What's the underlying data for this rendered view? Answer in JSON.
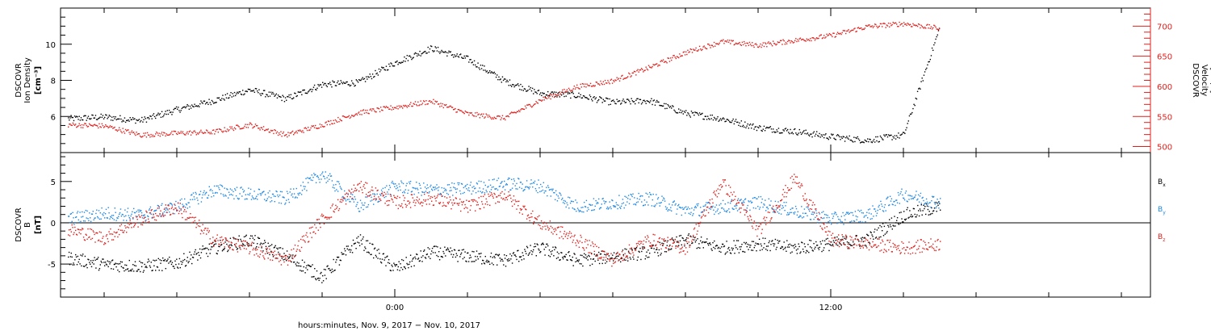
{
  "chart_data": [
    {
      "type": "scatter",
      "panel": "top",
      "ylabel_lines": [
        "DSCOVR",
        "Ion Density"
      ],
      "yunit": "[cm⁻³]",
      "ylim": [
        4.0,
        12.0
      ],
      "yticks": [
        6,
        8,
        10
      ],
      "y2label_lines": [
        "DSCOVR",
        "Velocity"
      ],
      "y2unit": "[km/s]",
      "y2lim": [
        490,
        730
      ],
      "y2ticks": [
        500,
        550,
        600,
        650,
        700
      ],
      "series": [
        {
          "axis": "left",
          "color": "#000000",
          "x": [
            -9,
            -8,
            -7,
            -6,
            -5,
            -4,
            -3,
            -2,
            -1,
            0,
            1,
            2,
            3,
            4,
            5,
            6,
            7,
            8,
            9,
            10,
            11,
            12,
            13,
            14,
            15
          ],
          "values": [
            5.9,
            6.0,
            5.8,
            6.4,
            6.9,
            7.5,
            7.0,
            7.8,
            7.9,
            9.0,
            9.8,
            9.2,
            8.0,
            7.3,
            7.2,
            6.8,
            6.9,
            6.2,
            5.9,
            5.4,
            5.2,
            4.9,
            4.7,
            5.0,
            11.0
          ]
        },
        {
          "axis": "right",
          "color": "#e0201c",
          "x": [
            -9,
            -8,
            -7,
            -6,
            -5,
            -4,
            -3,
            -2,
            -1,
            0,
            1,
            2,
            3,
            4,
            5,
            6,
            7,
            8,
            9,
            10,
            11,
            12,
            13,
            14,
            15
          ],
          "values": [
            537,
            535,
            520,
            523,
            525,
            537,
            520,
            537,
            557,
            566,
            576,
            555,
            548,
            578,
            600,
            610,
            632,
            657,
            675,
            669,
            677,
            685,
            700,
            705,
            697
          ]
        }
      ]
    },
    {
      "type": "scatter",
      "panel": "bottom",
      "ylabel_lines": [
        "DSCOVR",
        "B"
      ],
      "yunit": "[nT]",
      "ylim": [
        -9,
        8.5
      ],
      "yticks": [
        -5,
        0,
        5
      ],
      "legend": [
        "Bx",
        "By",
        "Bz"
      ],
      "legend_position": "right",
      "series": [
        {
          "name": "Bx",
          "color": "#000000",
          "x": [
            -9,
            -8,
            -7,
            -6,
            -5,
            -4,
            -3,
            -2,
            -1,
            0,
            1,
            2,
            3,
            4,
            5,
            6,
            7,
            8,
            9,
            10,
            11,
            12,
            13,
            14,
            15
          ],
          "values": [
            -4.2,
            -5.0,
            -5.2,
            -4.8,
            -3.0,
            -2.0,
            -4.0,
            -6.5,
            -2.0,
            -5.5,
            -3.5,
            -4.0,
            -4.5,
            -3.0,
            -4.5,
            -4.0,
            -3.5,
            -2.0,
            -3.0,
            -2.5,
            -3.0,
            -2.5,
            -2.0,
            1.0,
            2.0
          ]
        },
        {
          "name": "By",
          "color": "#1e88e5",
          "x": [
            -9,
            -8,
            -7,
            -6,
            -5,
            -4,
            -3,
            -2,
            -1,
            0,
            1,
            2,
            3,
            4,
            5,
            6,
            7,
            8,
            9,
            10,
            11,
            12,
            13,
            14,
            15
          ],
          "values": [
            0.5,
            1.2,
            1.0,
            2.0,
            4.0,
            3.5,
            3.0,
            6.0,
            2.0,
            4.5,
            4.0,
            4.2,
            4.8,
            4.5,
            2.0,
            2.5,
            3.0,
            1.5,
            2.0,
            2.5,
            1.5,
            0.5,
            1.0,
            3.5,
            2.5
          ]
        },
        {
          "name": "Bz",
          "color": "#e0201c",
          "x": [
            -9,
            -8,
            -7,
            -6,
            -5,
            -4,
            -3,
            -2,
            -1,
            0,
            1,
            2,
            3,
            4,
            5,
            6,
            7,
            8,
            9,
            10,
            11,
            12,
            13,
            14,
            15
          ],
          "values": [
            -0.8,
            -1.8,
            0.5,
            2.0,
            -2.0,
            -3.0,
            -4.5,
            0.5,
            4.5,
            2.5,
            3.0,
            2.0,
            3.5,
            0.0,
            -2.0,
            -4.5,
            -2.0,
            -3.0,
            5.0,
            -1.0,
            5.5,
            -2.0,
            -2.5,
            -3.0,
            -2.5
          ]
        }
      ]
    }
  ],
  "shared_x": {
    "label": "hours:minutes, Nov.  9, 2017 − Nov. 10, 2017",
    "xlim": [
      -9.2,
      20.8
    ],
    "tick_labels": [
      "0:00",
      "12:00"
    ],
    "tick_values": [
      0,
      12
    ],
    "minor_step": 2
  },
  "legend_labels": {
    "Bx": {
      "main": "B",
      "sub": "x",
      "color": "#000000"
    },
    "By": {
      "main": "B",
      "sub": "y",
      "color": "#1e88e5"
    },
    "Bz": {
      "main": "B",
      "sub": "z",
      "color": "#e0201c"
    }
  }
}
